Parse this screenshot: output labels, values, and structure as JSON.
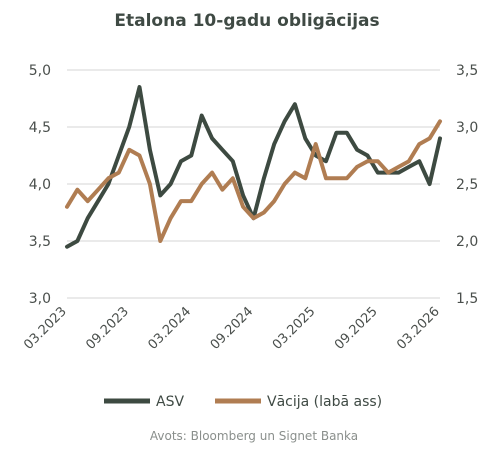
{
  "chart_data": {
    "type": "line",
    "title": "Etalona 10-gadu obligācijas",
    "x_tick_labels": [
      "03.2023",
      "09.2023",
      "03.2024",
      "09.2024",
      "03.2025",
      "09.2025",
      "03.2026"
    ],
    "x_range": [
      "2023-03",
      "2026-03"
    ],
    "y_left": {
      "ticks": [
        "3,0",
        "3,5",
        "4,0",
        "4,5",
        "5,0"
      ],
      "range": [
        3.0,
        5.0
      ]
    },
    "y_right": {
      "ticks": [
        "1,5",
        "2,0",
        "2,5",
        "3,0",
        "3,5"
      ],
      "range": [
        1.5,
        3.5
      ]
    },
    "grid": "horizontal",
    "legend_position": "bottom",
    "series": [
      {
        "name": "ASV",
        "axis": "left",
        "color": "#3d4a41",
        "x": [
          "2023-03",
          "2023-04",
          "2023-05",
          "2023-06",
          "2023-07",
          "2023-08",
          "2023-09",
          "2023-10",
          "2023-11",
          "2023-12",
          "2024-01",
          "2024-02",
          "2024-03",
          "2024-04",
          "2024-05",
          "2024-06",
          "2024-07",
          "2024-08",
          "2024-09",
          "2024-10",
          "2024-11",
          "2024-12",
          "2025-01",
          "2025-02",
          "2025-03",
          "2025-04",
          "2025-05",
          "2025-06",
          "2025-07",
          "2025-08",
          "2025-09",
          "2025-10",
          "2025-11",
          "2025-12",
          "2026-01",
          "2026-02",
          "2026-03"
        ],
        "values": [
          3.45,
          3.5,
          3.7,
          3.85,
          4.0,
          4.25,
          4.5,
          4.85,
          4.3,
          3.9,
          4.0,
          4.2,
          4.25,
          4.6,
          4.4,
          4.3,
          4.2,
          3.9,
          3.7,
          4.05,
          4.35,
          4.55,
          4.7,
          4.4,
          4.25,
          4.2,
          4.45,
          4.45,
          4.3,
          4.25,
          4.1,
          4.1,
          4.1,
          4.15,
          4.2,
          4.0,
          4.4
        ]
      },
      {
        "name": "Vācija (labā ass)",
        "axis": "right",
        "color": "#b07d52",
        "x": [
          "2023-03",
          "2023-04",
          "2023-05",
          "2023-06",
          "2023-07",
          "2023-08",
          "2023-09",
          "2023-10",
          "2023-11",
          "2023-12",
          "2024-01",
          "2024-02",
          "2024-03",
          "2024-04",
          "2024-05",
          "2024-06",
          "2024-07",
          "2024-08",
          "2024-09",
          "2024-10",
          "2024-11",
          "2024-12",
          "2025-01",
          "2025-02",
          "2025-03",
          "2025-04",
          "2025-05",
          "2025-06",
          "2025-07",
          "2025-08",
          "2025-09",
          "2025-10",
          "2025-11",
          "2025-12",
          "2026-01",
          "2026-02",
          "2026-03"
        ],
        "values": [
          2.3,
          2.45,
          2.35,
          2.45,
          2.55,
          2.6,
          2.8,
          2.75,
          2.5,
          2.0,
          2.2,
          2.35,
          2.35,
          2.5,
          2.6,
          2.45,
          2.55,
          2.3,
          2.2,
          2.25,
          2.35,
          2.5,
          2.6,
          2.55,
          2.85,
          2.55,
          2.55,
          2.55,
          2.65,
          2.7,
          2.7,
          2.6,
          2.65,
          2.7,
          2.85,
          2.9,
          3.05
        ]
      }
    ],
    "legend": [
      "ASV",
      "Vācija (labā ass)"
    ],
    "source": "Avots: Bloomberg un Signet Banka"
  }
}
